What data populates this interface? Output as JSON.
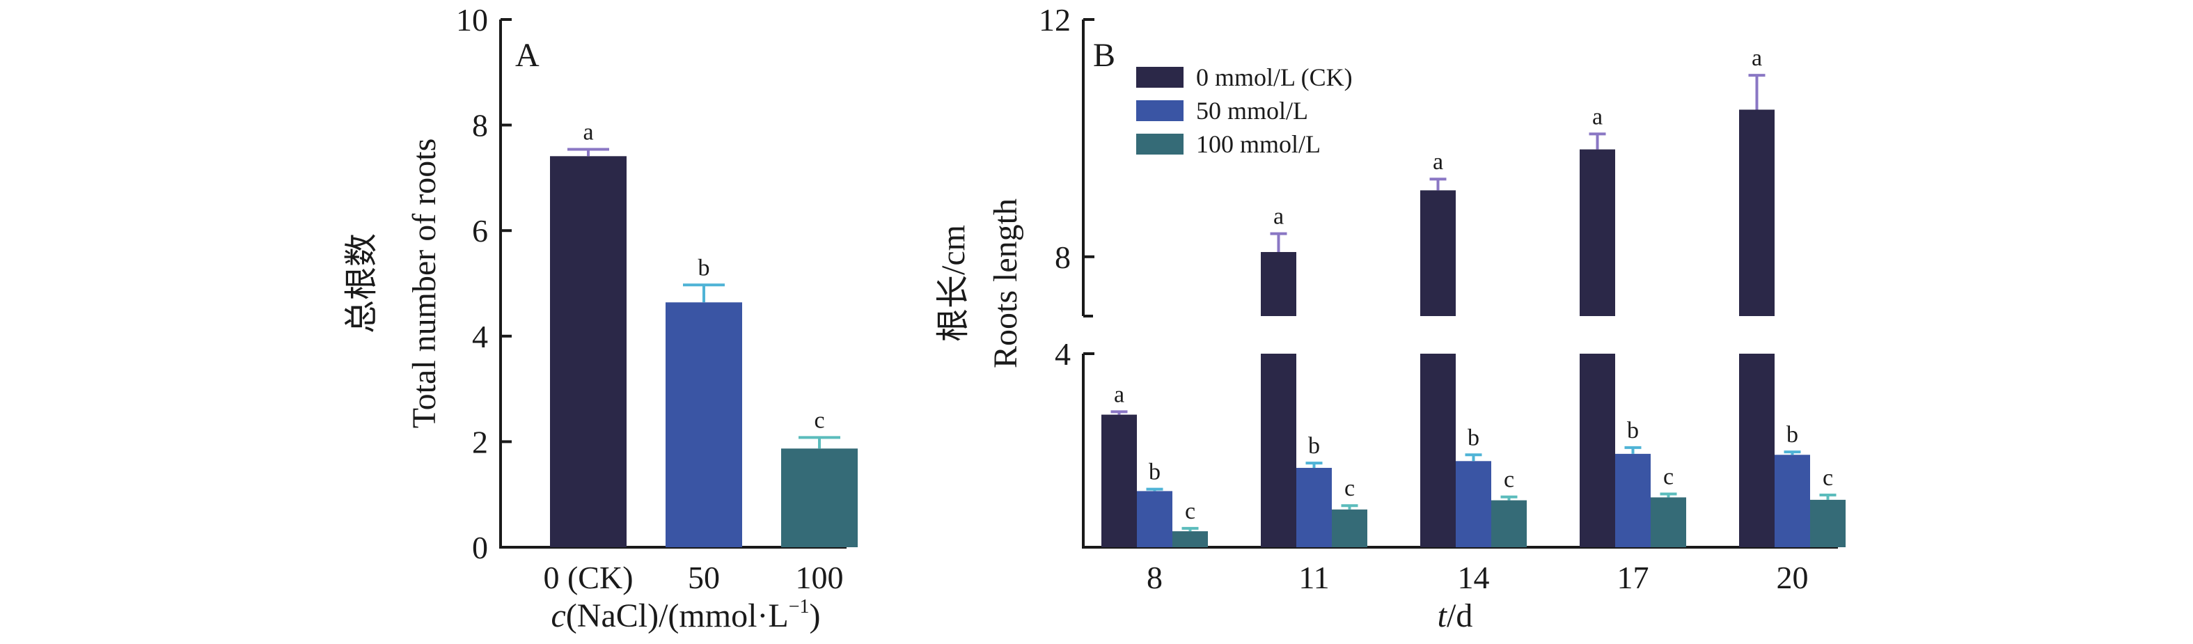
{
  "chart_data": [
    {
      "type": "bar",
      "panel_label": "A",
      "title": "",
      "xlabel_italic": "c",
      "xlabel_rest": "(NaCl)/(mmol·L",
      "xlabel_sup": "−1",
      "xlabel_close": ")",
      "ylabel_cn": "总根数",
      "ylabel_en": "Total number of roots",
      "ylim": [
        0,
        10
      ],
      "yticks": [
        "0",
        "2",
        "4",
        "6",
        "8",
        "10"
      ],
      "grid": false,
      "categories": [
        "0 (CK)",
        "50",
        "100"
      ],
      "values": [
        7.41,
        4.64,
        1.87
      ],
      "errors": [
        0.13,
        0.33,
        0.21
      ],
      "significance": [
        "a",
        "b",
        "c"
      ],
      "colors": [
        "#2b2848",
        "#3a55a4",
        "#356b77"
      ],
      "error_colors": [
        "#8a77c4",
        "#4fb3d6",
        "#5bbcbc"
      ]
    },
    {
      "type": "bar",
      "panel_label": "B",
      "title": "",
      "xlabel_italic": "t",
      "xlabel_rest": "/d",
      "ylabel_cn": "根长/cm",
      "ylabel_en": "Roots length",
      "axis_break": {
        "lower": [
          0,
          4
        ],
        "upper": [
          7,
          12
        ]
      },
      "yticks_lower": [
        "4"
      ],
      "yticks_upper": [
        "8",
        "12"
      ],
      "grid": false,
      "legend_position": "top-left",
      "categories": [
        "8",
        "11",
        "14",
        "17",
        "20"
      ],
      "series": [
        {
          "name": "0 mmol/L (CK)",
          "color": "#2b2848",
          "error_color": "#8a77c4",
          "values": [
            2.74,
            8.08,
            9.12,
            9.81,
            10.48
          ],
          "errors": [
            0.06,
            0.31,
            0.19,
            0.26,
            0.58
          ],
          "significance": [
            "a",
            "a",
            "a",
            "a",
            "a"
          ]
        },
        {
          "name": "50 mmol/L",
          "color": "#3a55a4",
          "error_color": "#4fb3d6",
          "values": [
            1.16,
            1.64,
            1.78,
            1.93,
            1.91
          ],
          "errors": [
            0.04,
            0.1,
            0.13,
            0.13,
            0.06
          ],
          "significance": [
            "b",
            "b",
            "b",
            "b",
            "b"
          ]
        },
        {
          "name": "100 mmol/L",
          "color": "#356b77",
          "error_color": "#5bbcbc",
          "values": [
            0.33,
            0.78,
            0.97,
            1.03,
            0.98
          ],
          "errors": [
            0.06,
            0.08,
            0.07,
            0.07,
            0.1
          ],
          "significance": [
            "c",
            "c",
            "c",
            "c",
            "c"
          ]
        }
      ]
    }
  ]
}
